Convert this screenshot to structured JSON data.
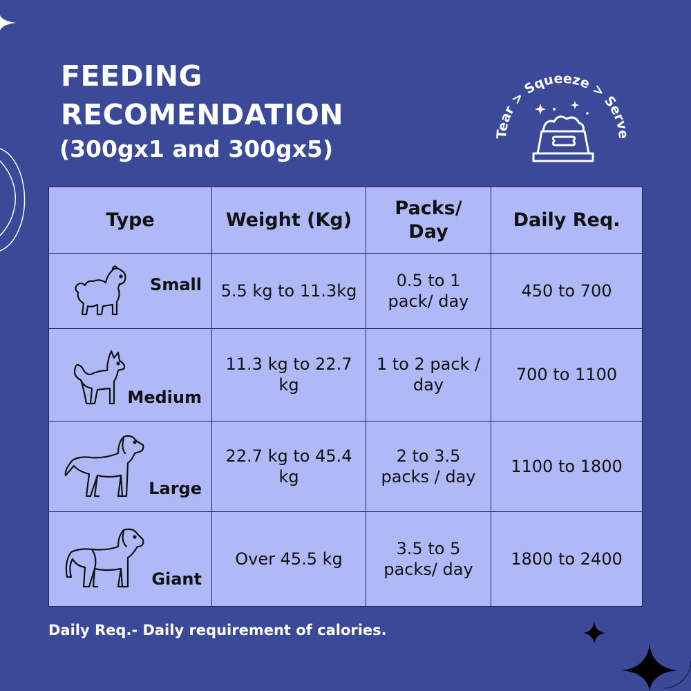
{
  "title_line1": "FEEDING",
  "title_line2": "RECOMENDATION",
  "subtitle": "(300gx1 and 300gx5)",
  "badge": {
    "arc_text": "Tear > Squeeze > Serve",
    "icon": "dog-food-bowl-icon"
  },
  "table": {
    "headers": {
      "type": "Type",
      "weight": "Weight (Kg)",
      "packs": "Packs/ Day",
      "daily": "Daily Req."
    },
    "rows": [
      {
        "type": "Small",
        "icon": "small-dog-icon",
        "weight": "5.5 kg to 11.3kg",
        "packs": "0.5 to 1 pack/ day",
        "daily": "450 to 700"
      },
      {
        "type": "Medium",
        "icon": "medium-dog-icon",
        "weight": "11.3 kg to 22.7 kg",
        "packs": "1 to 2 pack / day",
        "daily": "700 to 1100"
      },
      {
        "type": "Large",
        "icon": "large-dog-icon",
        "weight": "22.7 kg to 45.4 kg",
        "packs": "2 to 3.5 packs / day",
        "daily": "1100 to 1800"
      },
      {
        "type": "Giant",
        "icon": "giant-dog-icon",
        "weight": "Over 45.5 kg",
        "packs": "3.5 to 5 packs/ day",
        "daily": "1800 to 2400"
      }
    ]
  },
  "footnote": "Daily Req.- Daily requirement of calories.",
  "colors": {
    "background": "#3b4a98",
    "table_fill": "#b0b9f7",
    "table_border": "#1e2560",
    "text_light": "#ffffff"
  }
}
